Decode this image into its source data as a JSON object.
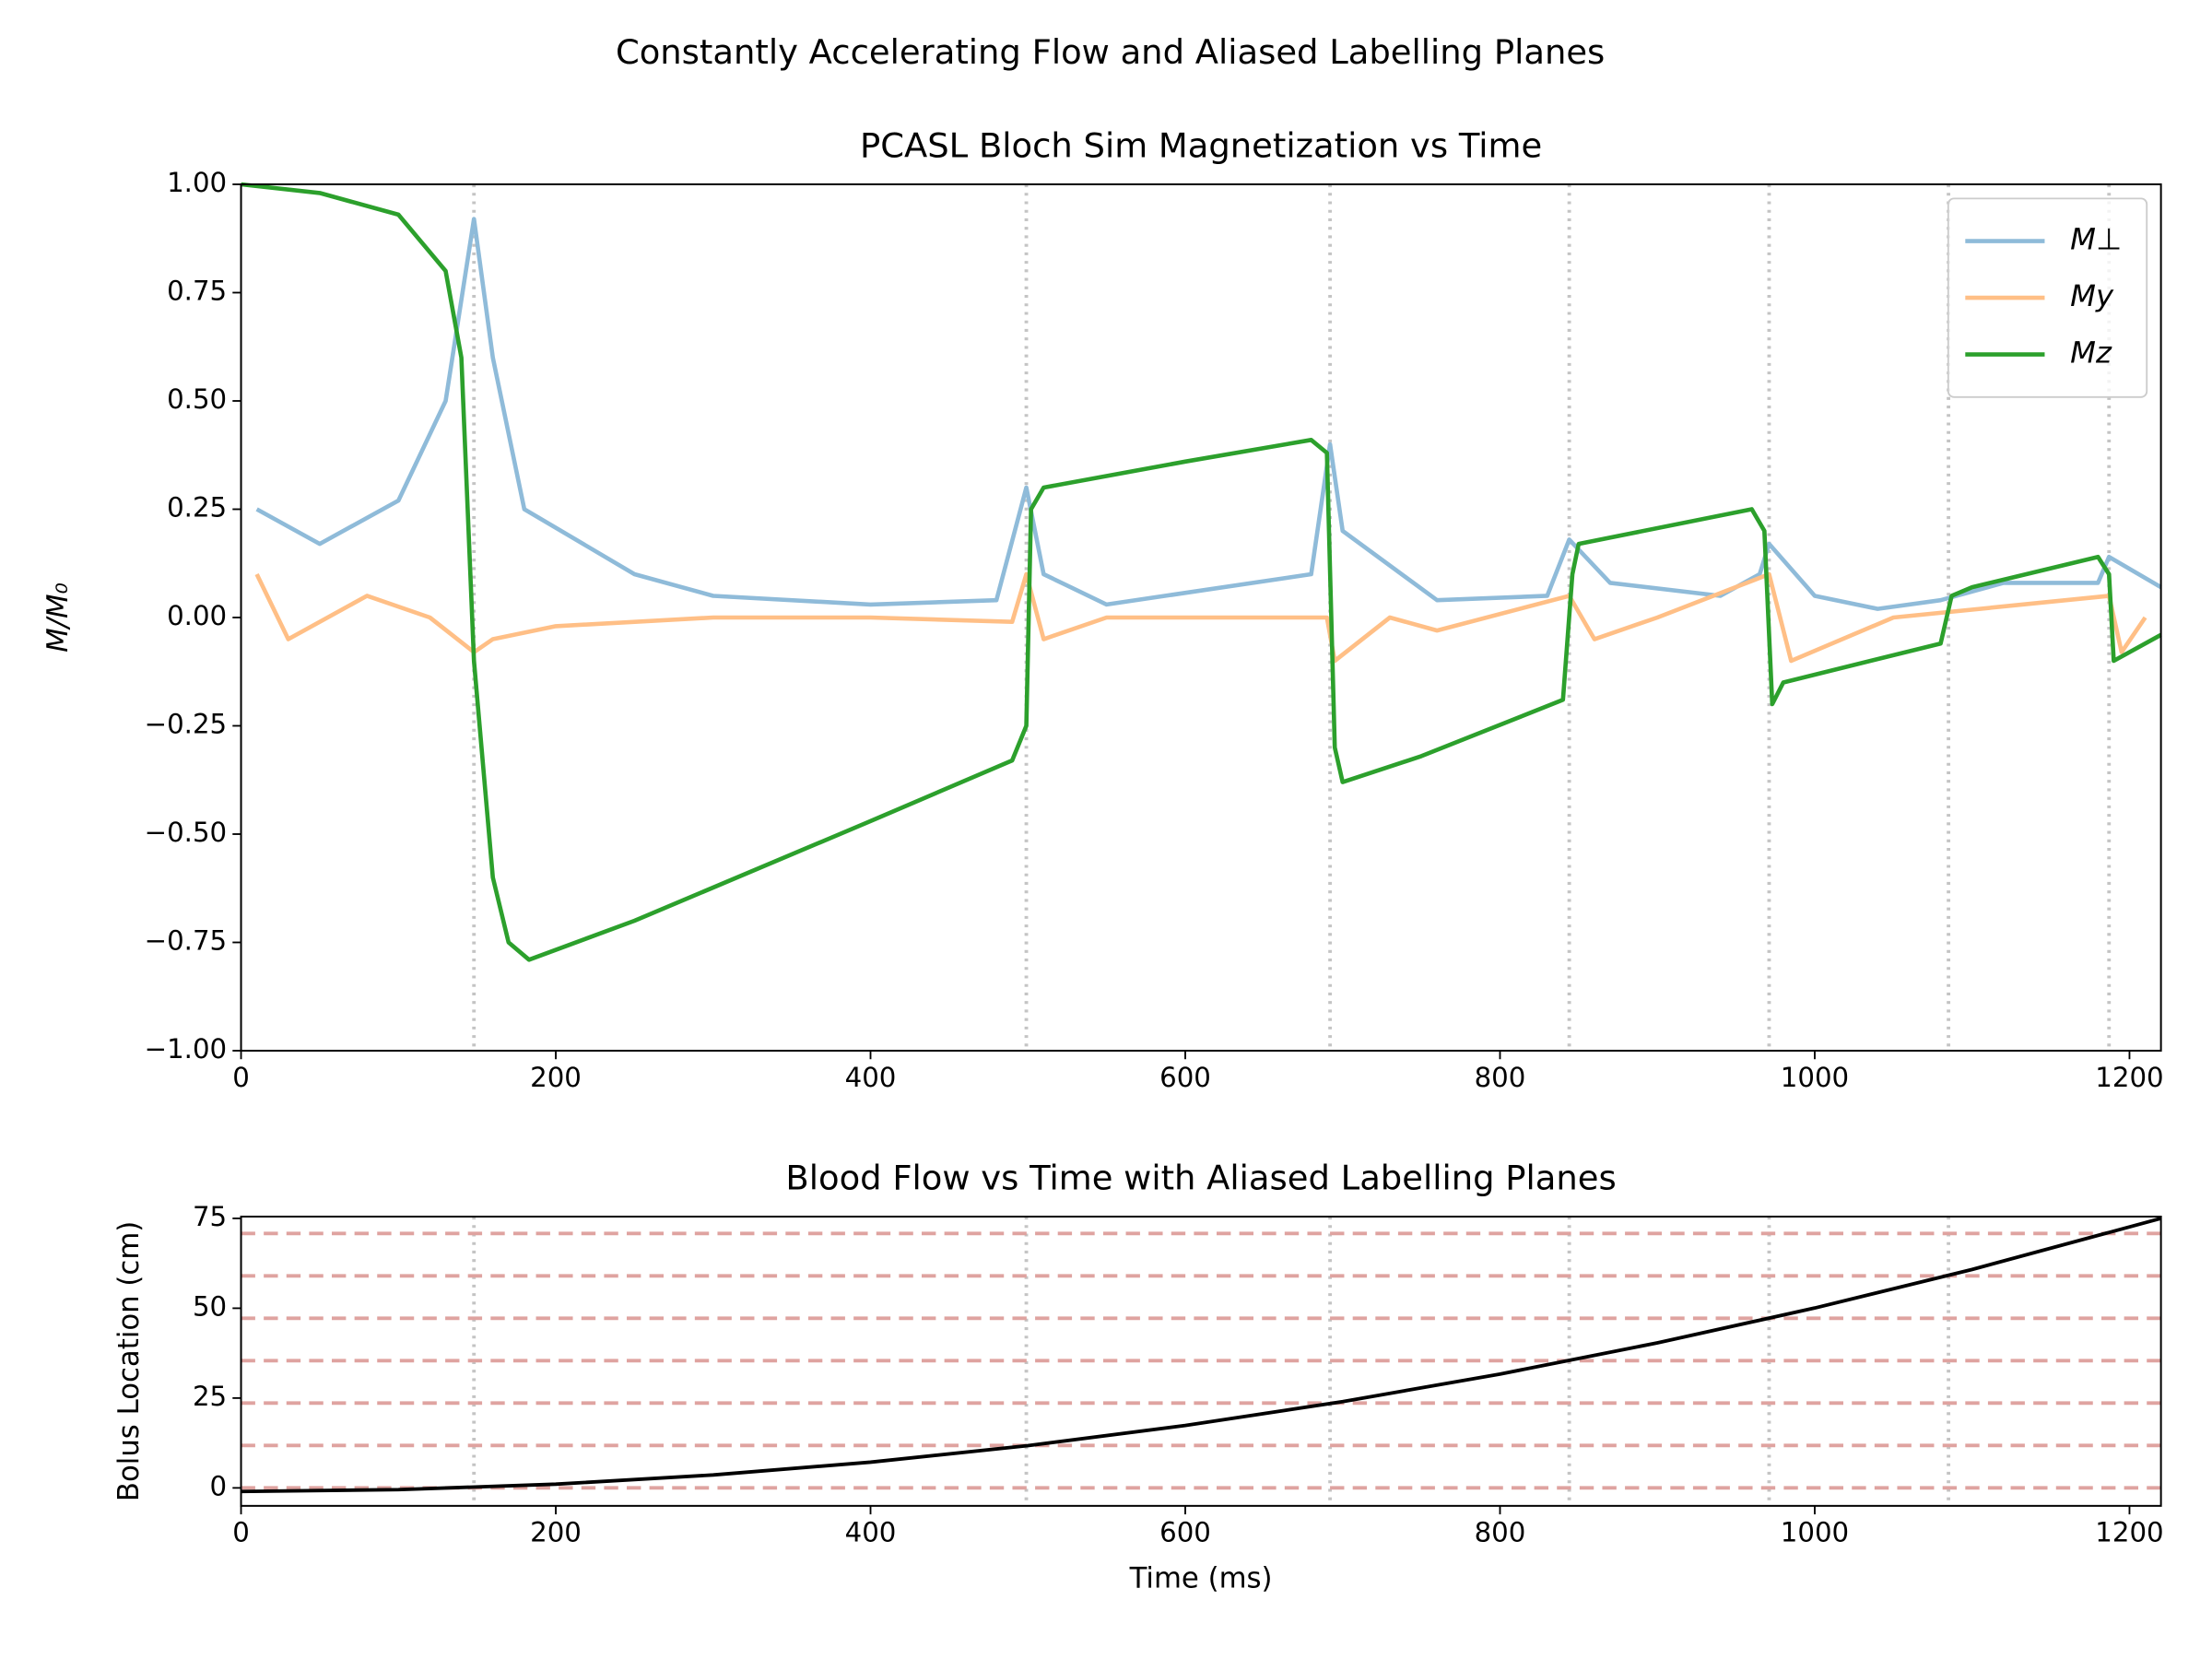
{
  "title": "Constantly Accelerating Flow and Aliased Labelling Planes",
  "chart_data": [
    {
      "type": "line",
      "title": "PCASL Bloch Sim Magnetization vs Time",
      "ylabel": "M/M₀",
      "xlim": [
        0,
        1220
      ],
      "ylim": [
        -1,
        1
      ],
      "xticks": [
        0,
        200,
        400,
        600,
        800,
        1000,
        1200
      ],
      "yticks": [
        {
          "value": 1,
          "label": "1.00"
        },
        {
          "value": 0.75,
          "label": "0.75"
        },
        {
          "value": 0.5,
          "label": "0.50"
        },
        {
          "value": 0.25,
          "label": "0.25"
        },
        {
          "value": 0,
          "label": "0.00"
        },
        {
          "value": -0.25,
          "label": "−0.25"
        },
        {
          "value": -0.5,
          "label": "−0.50"
        },
        {
          "value": -0.75,
          "label": "−0.75"
        },
        {
          "value": -1,
          "label": "−1.00"
        }
      ],
      "legend": "upper right",
      "vlines": [
        148,
        499,
        692,
        844,
        971,
        1085,
        1187
      ],
      "vline_color": "#c4c4c4",
      "series": [
        {
          "name": "M⊥",
          "color": "#8fbbd9",
          "x": [
            10,
            50,
            100,
            130,
            148,
            160,
            180,
            250,
            300,
            400,
            480,
            499,
            510,
            550,
            680,
            692,
            700,
            760,
            830,
            844,
            870,
            940,
            965,
            971,
            1000,
            1040,
            1080,
            1120,
            1180,
            1187,
            1220
          ],
          "values": [
            0.25,
            0.17,
            0.27,
            0.5,
            0.92,
            0.6,
            0.25,
            0.1,
            0.05,
            0.03,
            0.04,
            0.3,
            0.1,
            0.03,
            0.1,
            0.4,
            0.2,
            0.04,
            0.05,
            0.18,
            0.08,
            0.05,
            0.1,
            0.17,
            0.05,
            0.02,
            0.04,
            0.08,
            0.08,
            0.14,
            0.07
          ]
        },
        {
          "name": "My",
          "color": "#ffbf86",
          "x": [
            10,
            30,
            80,
            120,
            148,
            160,
            200,
            300,
            400,
            490,
            499,
            510,
            550,
            690,
            695,
            730,
            760,
            844,
            860,
            900,
            971,
            985,
            1050,
            1187,
            1195,
            1210
          ],
          "values": [
            0.1,
            -0.05,
            0.05,
            0,
            -0.08,
            -0.05,
            -0.02,
            0,
            0,
            -0.01,
            0.1,
            -0.05,
            0,
            0,
            -0.1,
            0,
            -0.03,
            0.05,
            -0.05,
            0,
            0.1,
            -0.1,
            0,
            0.05,
            -0.08,
            0
          ]
        },
        {
          "name": "Mz",
          "color": "#2ca02c",
          "x": [
            0,
            50,
            100,
            130,
            140,
            148,
            160,
            170,
            183,
            250,
            400,
            490,
            499,
            502,
            510,
            600,
            680,
            690,
            695,
            700,
            750,
            840,
            846,
            850,
            960,
            968,
            973,
            980,
            1080,
            1087,
            1100,
            1180,
            1187,
            1190,
            1220
          ],
          "values": [
            1,
            0.98,
            0.93,
            0.8,
            0.6,
            -0.1,
            -0.6,
            -0.75,
            -0.79,
            -0.7,
            -0.47,
            -0.33,
            -0.25,
            0.25,
            0.3,
            0.36,
            0.41,
            0.38,
            -0.3,
            -0.38,
            -0.32,
            -0.19,
            0.1,
            0.17,
            0.25,
            0.2,
            -0.2,
            -0.15,
            -0.06,
            0.05,
            0.07,
            0.14,
            0.1,
            -0.1,
            -0.04
          ]
        }
      ]
    },
    {
      "type": "line",
      "title": "Blood Flow vs Time with Aliased Labelling Planes",
      "xlabel": "Time (ms)",
      "ylabel": "Bolus Location (cm)",
      "xlim": [
        0,
        1220
      ],
      "ylim": [
        -5,
        75.5
      ],
      "xticks": [
        0,
        200,
        400,
        600,
        800,
        1000,
        1200
      ],
      "yticks": [
        0,
        25,
        50,
        75
      ],
      "vlines": [
        148,
        499,
        692,
        844,
        971,
        1085
      ],
      "vline_color": "#c4c4c4",
      "hlines": [
        0,
        11.8,
        23.6,
        35.4,
        47.2,
        59,
        70.8
      ],
      "hline_color": "#dfa3a0",
      "series": [
        {
          "color": "#000000",
          "x": [
            0,
            100,
            200,
            300,
            400,
            500,
            600,
            700,
            800,
            900,
            1000,
            1100,
            1220
          ],
          "values": [
            -1,
            -0.49,
            1.04,
            3.6,
            7.17,
            11.76,
            17.38,
            24.01,
            31.67,
            40.36,
            50.06,
            60.78,
            75
          ]
        }
      ]
    }
  ]
}
